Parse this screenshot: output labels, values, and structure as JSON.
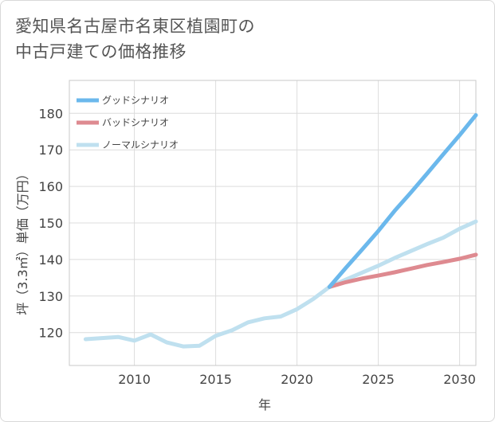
{
  "title": {
    "line1": "愛知県名古屋市名東区植園町の",
    "line2": "中古戸建ての価格推移"
  },
  "chart_data": {
    "type": "line",
    "title": "愛知県名古屋市名東区植園町の中古戸建ての価格推移",
    "xlabel": "年",
    "ylabel": "坪（3.3㎡）単価（万円）",
    "xlim": [
      2006,
      2031
    ],
    "ylim": [
      111,
      189
    ],
    "xticks": [
      2010,
      2015,
      2020,
      2025,
      2030
    ],
    "yticks": [
      120,
      130,
      140,
      150,
      160,
      170,
      180
    ],
    "grid": true,
    "legend_position": "top-left",
    "series": [
      {
        "name": "グッドシナリオ",
        "color": "#6bb8ec",
        "x": [
          2022,
          2023,
          2024,
          2025,
          2026,
          2027,
          2028,
          2029,
          2030,
          2031
        ],
        "y": [
          132.5,
          137.7,
          142.7,
          147.8,
          153.3,
          158.3,
          163.5,
          168.8,
          174.0,
          179.5
        ]
      },
      {
        "name": "バッドシナリオ",
        "color": "#de8a90",
        "x": [
          2022,
          2023,
          2024,
          2025,
          2026,
          2027,
          2028,
          2029,
          2030,
          2031
        ],
        "y": [
          132.5,
          133.8,
          134.8,
          135.6,
          136.5,
          137.5,
          138.5,
          139.3,
          140.2,
          141.3
        ]
      },
      {
        "name": "ノーマルシナリオ",
        "color": "#bfe0ef",
        "x": [
          2007,
          2008,
          2009,
          2010,
          2011,
          2012,
          2013,
          2014,
          2015,
          2016,
          2017,
          2018,
          2019,
          2020,
          2021,
          2022,
          2023,
          2024,
          2025,
          2026,
          2027,
          2028,
          2029,
          2030,
          2031
        ],
        "y": [
          118.2,
          118.5,
          118.8,
          117.8,
          119.5,
          117.3,
          116.2,
          116.4,
          119.1,
          120.6,
          122.8,
          123.9,
          124.4,
          126.4,
          129.2,
          132.5,
          134.5,
          136.4,
          138.3,
          140.4,
          142.3,
          144.2,
          146.0,
          148.4,
          150.4
        ]
      }
    ]
  }
}
